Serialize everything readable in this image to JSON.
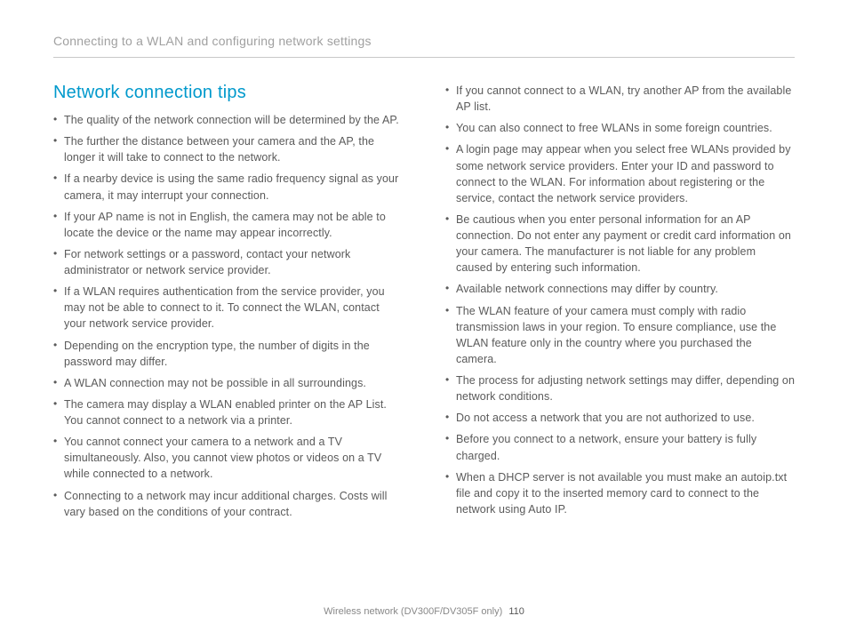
{
  "header": {
    "breadcrumb": "Connecting to a WLAN and configuring network settings"
  },
  "section": {
    "title": "Network connection tips"
  },
  "left_items": [
    "The quality of the network connection will be determined by the AP.",
    "The further the distance between your camera and the AP, the longer it will take to connect to the network.",
    "If a nearby device is using the same radio frequency signal as your camera, it may interrupt your connection.",
    "If your AP name is not in English, the camera may not be able to locate the device or the name may appear incorrectly.",
    "For network settings or a password, contact your network administrator or network service provider.",
    "If a WLAN requires authentication from the service provider, you may not be able to connect to it. To connect the WLAN, contact your network service provider.",
    "Depending on the encryption type, the number of digits in the password may differ.",
    "A WLAN connection may not be possible in all surroundings.",
    "The camera may display a WLAN enabled printer on the AP List. You cannot connect to a network via a printer.",
    "You cannot connect your camera to a network and a TV simultaneously. Also, you cannot view photos or videos on a TV while connected to a network.",
    "Connecting to a network may incur additional charges. Costs will vary based on the conditions of your contract."
  ],
  "right_items": [
    "If you cannot connect to a WLAN, try another AP from the available AP list.",
    "You can also connect to free WLANs in some foreign countries.",
    "A login page may appear when you select free WLANs provided by some network service providers. Enter your ID and password to connect to the WLAN. For information about registering or the service, contact the network service providers.",
    "Be cautious when you enter personal information for an AP connection. Do not enter any payment or credit card information on your camera. The manufacturer is not liable for any problem caused by entering such information.",
    "Available network connections may differ by country.",
    "The WLAN feature of your camera must comply with radio transmission laws in your region. To ensure compliance, use the WLAN feature only in the country where you purchased the camera.",
    "The process for adjusting network settings may differ, depending on network conditions.",
    "Do not access a network that you are not authorized to use.",
    "Before you connect to a network, ensure your battery is fully charged.",
    "When a DHCP server is not available you must make an autoip.txt file and copy it to the inserted memory card to connect to the network using Auto IP."
  ],
  "footer": {
    "text": "Wireless network (DV300F/DV305F only)",
    "page": "110"
  }
}
